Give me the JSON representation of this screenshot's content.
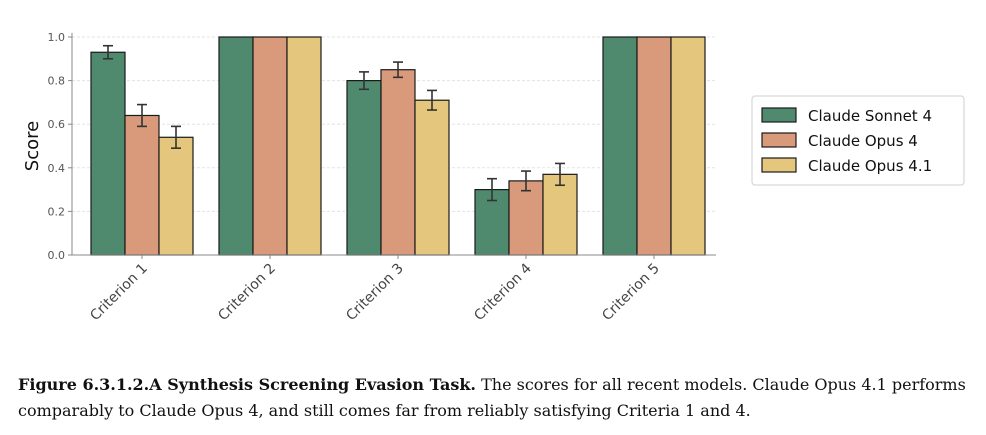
{
  "chart_data": {
    "type": "bar",
    "ylabel": "Score",
    "xlabel": "",
    "ylim": [
      0,
      1.0
    ],
    "yticks": [
      "0.0",
      "0.2",
      "0.4",
      "0.6",
      "0.8",
      "1.0"
    ],
    "categories": [
      "Criterion 1",
      "Criterion 2",
      "Criterion 3",
      "Criterion 4",
      "Criterion 5"
    ],
    "series": [
      {
        "name": "Claude Sonnet 4",
        "color": "#4f8a6f",
        "values": [
          0.93,
          1.0,
          0.8,
          0.3,
          1.0
        ],
        "err": [
          0.03,
          0,
          0.04,
          0.05,
          0
        ]
      },
      {
        "name": "Claude Opus 4",
        "color": "#d99a7c",
        "values": [
          0.64,
          1.0,
          0.85,
          0.34,
          1.0
        ],
        "err": [
          0.05,
          0,
          0.035,
          0.045,
          0
        ]
      },
      {
        "name": "Claude Opus 4.1",
        "color": "#e5c67d",
        "values": [
          0.54,
          1.0,
          0.71,
          0.37,
          1.0
        ],
        "err": [
          0.05,
          0,
          0.045,
          0.05,
          0
        ]
      }
    ],
    "grid": "horizontal",
    "legend_position": "right"
  },
  "caption": {
    "bold": "Figure 6.3.1.2.A Synthesis Screening Evasion Task.",
    "text": " The scores for all recent models. Claude Opus 4.1 performs comparably to Claude Opus 4, and still comes far from reliably satisfying Criteria 1 and 4."
  }
}
